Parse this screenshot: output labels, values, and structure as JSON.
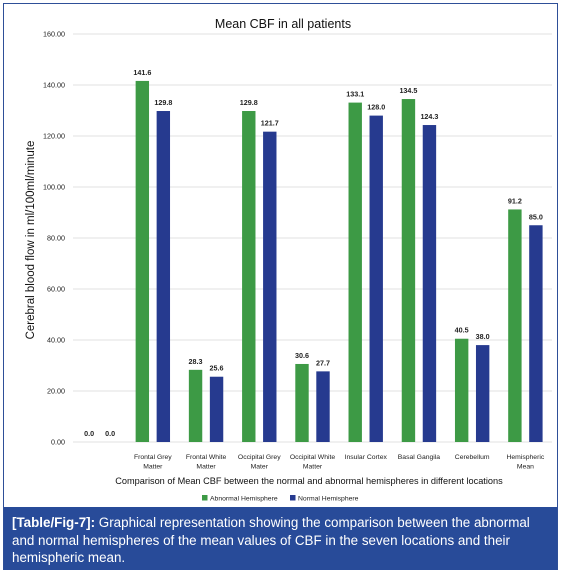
{
  "chart_data": {
    "type": "bar",
    "title": "Mean CBF in all patients",
    "xlabel": "Comparison of Mean CBF between the normal and abnormal hemispheres in different locations",
    "ylabel": "Cerebral blood flow in ml/100ml/minute",
    "ylim": [
      0,
      160
    ],
    "yticks": [
      "0.00",
      "20.00",
      "40.00",
      "60.00",
      "80.00",
      "100.00",
      "120.00",
      "140.00",
      "160.00"
    ],
    "grid": true,
    "legend_position": "bottom",
    "categories": [
      [
        "",
        ""
      ],
      [
        "Frontal Grey",
        "Matter"
      ],
      [
        "Frontal White",
        "Matter"
      ],
      [
        "Occipital Grey",
        "Mater"
      ],
      [
        "Occipital White",
        "Matter"
      ],
      [
        "Insular Cortex"
      ],
      [
        "Basal Gangila"
      ],
      [
        "Cerebellum"
      ],
      [
        "Hemispheric",
        "Mean"
      ]
    ],
    "series": [
      {
        "name": "Abnormal Hemisphere",
        "color": "#3d9a45",
        "values": [
          0.0,
          141.6,
          28.3,
          129.8,
          30.6,
          133.1,
          134.5,
          40.5,
          91.2
        ],
        "labels": [
          "0.0",
          "141.6",
          "28.3",
          "129.8",
          "30.6",
          "133.1",
          "134.5",
          "40.5",
          "91.2"
        ]
      },
      {
        "name": "Normal Hemisphere",
        "color": "#263a8f",
        "values": [
          0.0,
          129.8,
          25.6,
          121.7,
          27.7,
          128.0,
          124.3,
          38.0,
          85.0
        ],
        "labels": [
          "0.0",
          "129.8",
          "25.6",
          "121.7",
          "27.7",
          "128.0",
          "124.3",
          "38.0",
          "85.0"
        ]
      }
    ]
  },
  "caption": {
    "tag": "[Table/Fig-7]:",
    "text": " Graphical representation showing the comparison between the abnormal and normal hemispheres of the mean values of CBF in the seven locations and their hemispheric mean."
  }
}
